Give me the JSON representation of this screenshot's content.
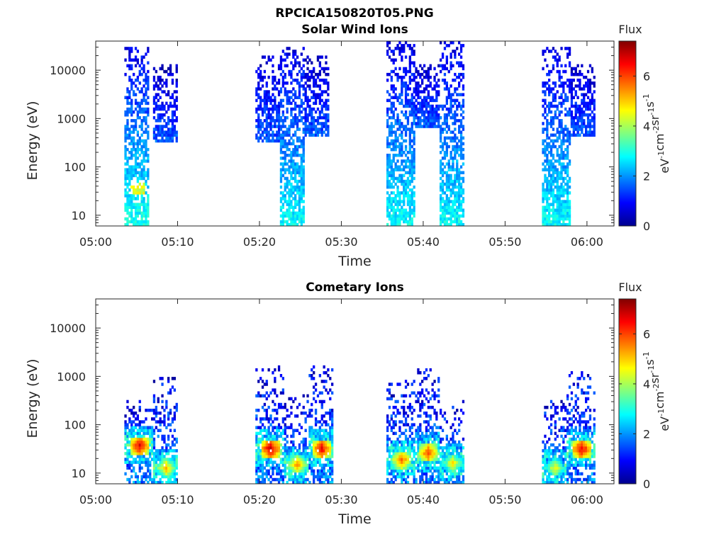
{
  "figure": {
    "title": "RPCICA150820T05.PNG"
  },
  "chart_data": [
    {
      "type": "heatmap",
      "title": "Solar Wind Ions",
      "xlabel": "Time",
      "ylabel": "Energy (eV)",
      "x_ticks": [
        "05:00",
        "05:10",
        "05:20",
        "05:30",
        "05:40",
        "05:50",
        "06:00"
      ],
      "y_ticks": [
        "10",
        "100",
        "1000",
        "10000"
      ],
      "y_scale": "log",
      "ylim": [
        6,
        40000
      ],
      "colorbar": {
        "title": "Flux",
        "label": "eV-1cm-2sr-1s-1",
        "ticks": [
          "0",
          "2",
          "4",
          "6"
        ],
        "range": [
          0,
          7.4
        ],
        "colormap": "jet"
      },
      "bursts": [
        {
          "start": "05:03.5",
          "end": "05:06.5",
          "emin": 6,
          "emax": 30000,
          "low_energy_flux": 3.0,
          "peak_energy": 35,
          "peak_flux": 4.8
        },
        {
          "start": "05:07",
          "end": "05:10",
          "emin": 300,
          "emax": 12000,
          "low_energy_flux": 1.6
        },
        {
          "start": "05:19.5",
          "end": "05:22.5",
          "emin": 300,
          "emax": 20000,
          "low_energy_flux": 1.6
        },
        {
          "start": "05:22.5",
          "end": "05:25.5",
          "emin": 6,
          "emax": 30000,
          "low_energy_flux": 2.8
        },
        {
          "start": "05:25.5",
          "end": "05:28.5",
          "emin": 400,
          "emax": 20000,
          "low_energy_flux": 1.6
        },
        {
          "start": "05:35.5",
          "end": "05:39",
          "emin": 6,
          "emax": 35000,
          "low_energy_flux": 2.8
        },
        {
          "start": "05:39",
          "end": "05:42",
          "emin": 600,
          "emax": 12000,
          "low_energy_flux": 1.6
        },
        {
          "start": "05:42",
          "end": "05:45",
          "emin": 6,
          "emax": 35000,
          "low_energy_flux": 2.8
        },
        {
          "start": "05:54.5",
          "end": "05:58",
          "emin": 6,
          "emax": 30000,
          "low_energy_flux": 2.8
        },
        {
          "start": "05:58",
          "end": "06:01",
          "emin": 400,
          "emax": 12000,
          "low_energy_flux": 1.6
        }
      ]
    },
    {
      "type": "heatmap",
      "title": "Cometary Ions",
      "xlabel": "Time",
      "ylabel": "Energy (eV)",
      "x_ticks": [
        "05:00",
        "05:10",
        "05:20",
        "05:30",
        "05:40",
        "05:50",
        "06:00"
      ],
      "y_ticks": [
        "10",
        "100",
        "1000",
        "10000"
      ],
      "y_scale": "log",
      "ylim": [
        6,
        40000
      ],
      "colorbar": {
        "title": "Flux",
        "label": "eV-1cm-2sr-1s-1",
        "ticks": [
          "0",
          "2",
          "4",
          "6"
        ],
        "range": [
          0,
          7.4
        ],
        "colormap": "jet"
      },
      "bursts": [
        {
          "start": "05:03.5",
          "end": "05:07",
          "emin": 6,
          "emax": 300,
          "peak_energy": 35,
          "peak_flux": 7.0
        },
        {
          "start": "05:07",
          "end": "05:10",
          "emin": 6,
          "emax": 900,
          "peak_energy": 12,
          "peak_flux": 5.5
        },
        {
          "start": "05:19.5",
          "end": "05:23",
          "emin": 6,
          "emax": 1500,
          "peak_energy": 30,
          "peak_flux": 7.2
        },
        {
          "start": "05:23",
          "end": "05:26",
          "emin": 6,
          "emax": 400,
          "peak_energy": 14,
          "peak_flux": 5.8
        },
        {
          "start": "05:26",
          "end": "05:29",
          "emin": 6,
          "emax": 1600,
          "peak_energy": 30,
          "peak_flux": 7.0
        },
        {
          "start": "05:35.5",
          "end": "05:39",
          "emin": 6,
          "emax": 800,
          "peak_energy": 18,
          "peak_flux": 6.0
        },
        {
          "start": "05:39",
          "end": "05:42",
          "emin": 6,
          "emax": 1300,
          "peak_energy": 25,
          "peak_flux": 6.5
        },
        {
          "start": "05:42",
          "end": "05:45",
          "emin": 6,
          "emax": 300,
          "peak_energy": 15,
          "peak_flux": 5.2
        },
        {
          "start": "05:54.5",
          "end": "05:57.5",
          "emin": 6,
          "emax": 300,
          "peak_energy": 12,
          "peak_flux": 5.0
        },
        {
          "start": "05:57.5",
          "end": "06:01",
          "emin": 6,
          "emax": 1200,
          "peak_energy": 30,
          "peak_flux": 7.0
        }
      ]
    }
  ]
}
